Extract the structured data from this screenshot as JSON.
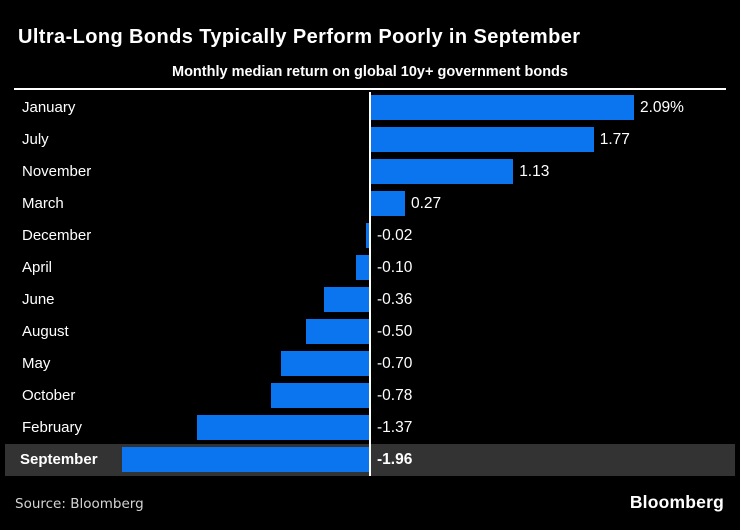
{
  "header": {
    "title": "Ultra-Long Bonds Typically Perform Poorly in September",
    "subtitle": "Monthly median return on global 10y+ government bonds"
  },
  "chart_data": {
    "type": "bar",
    "orientation": "horizontal",
    "title": "Ultra-Long Bonds Typically Perform Poorly in September",
    "subtitle": "Monthly median return on global 10y+ government bonds",
    "xlabel": "",
    "ylabel": "",
    "xlim": [
      -2.09,
      2.09
    ],
    "grid": false,
    "legend": false,
    "categories": [
      "January",
      "July",
      "November",
      "March",
      "December",
      "April",
      "June",
      "August",
      "May",
      "October",
      "February",
      "September"
    ],
    "values": [
      2.09,
      1.77,
      1.13,
      0.27,
      -0.02,
      -0.1,
      -0.36,
      -0.5,
      -0.7,
      -0.78,
      -1.37,
      -1.96
    ],
    "value_labels": [
      "2.09%",
      "1.77",
      "1.13",
      "0.27",
      "-0.02",
      "-0.10",
      "-0.36",
      "-0.50",
      "-0.70",
      "-0.78",
      "-1.37",
      "-1.96"
    ],
    "highlighted_category": "September",
    "bar_color": "#0B75F0",
    "highlight_row_color": "#333333",
    "axis_color": "#FFFFFF"
  },
  "footer": {
    "source_label": "Source: Bloomberg",
    "brand_logo": "Bloomberg"
  },
  "colors": {
    "background": "#000000",
    "bar": "#0B75F0",
    "highlight_row_bg": "#333333",
    "text": "#FFFFFF",
    "source_text": "#D4D4D4",
    "axis_line": "#FFFFFF"
  }
}
